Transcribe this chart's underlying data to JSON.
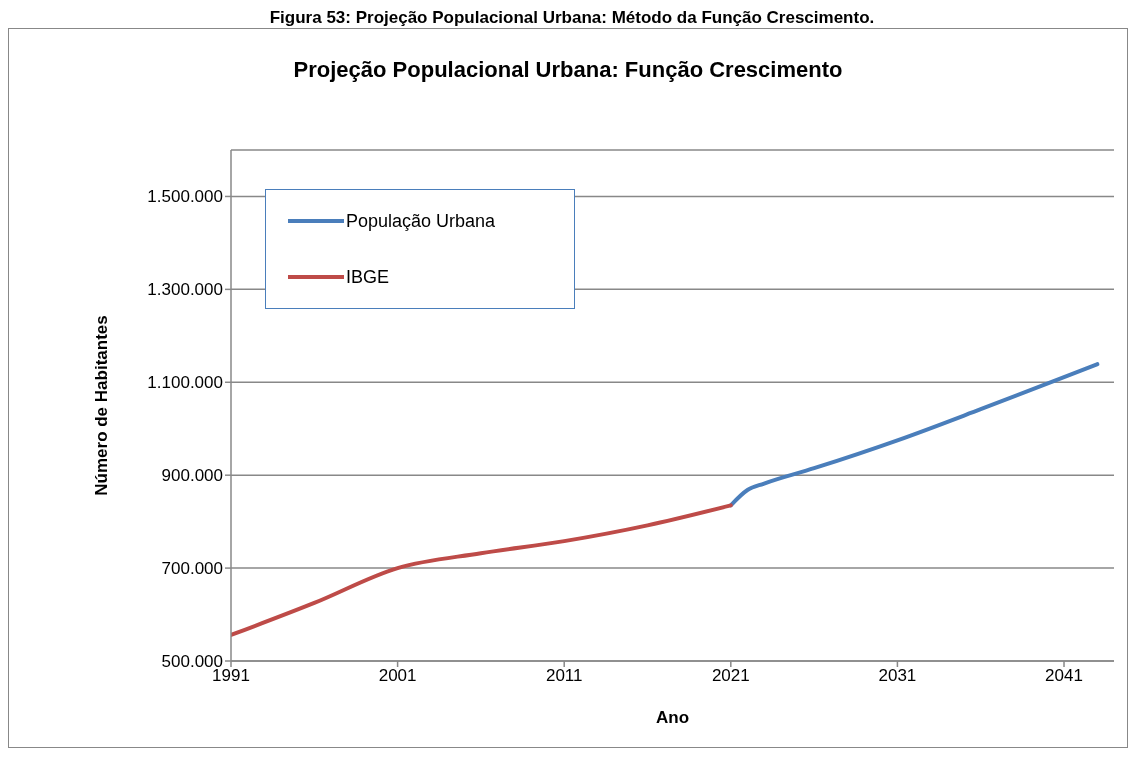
{
  "chart_data": {
    "type": "line",
    "title": "Projeção Populacional Urbana: Função Crescimento",
    "annotations": [
      "Figura 53: Projeção Populacional Urbana: Método da Função Crescimento."
    ],
    "xlabel": "Ano",
    "ylabel": "Número de Habitantes",
    "series": [
      {
        "name": "População Urbana",
        "color": "#4a7ebb",
        "x": [
          2021,
          2022,
          2023,
          2026,
          2031,
          2036,
          2041,
          2043
        ],
        "values": [
          835000,
          868000,
          882000,
          915000,
          975000,
          1042000,
          1111000,
          1139000
        ]
      },
      {
        "name": "IBGE",
        "color": "#be4b48",
        "x": [
          1991,
          1996,
          2001,
          2006,
          2011,
          2016,
          2021
        ],
        "values": [
          556000,
          625000,
          700000,
          732000,
          758000,
          792000,
          835000
        ]
      }
    ],
    "xlim": [
      1991,
      2044
    ],
    "xticks": [
      1991,
      2001,
      2011,
      2021,
      2031,
      2041
    ],
    "ylim": [
      500000,
      1600000
    ],
    "yticks": [
      {
        "value": 500000,
        "label": "500.000"
      },
      {
        "value": 700000,
        "label": "700.000"
      },
      {
        "value": 900000,
        "label": "900.000"
      },
      {
        "value": 1100000,
        "label": "1.100.000"
      },
      {
        "value": 1300000,
        "label": "1.300.000"
      },
      {
        "value": 1500000,
        "label": "1.500.000"
      }
    ],
    "grid": "y",
    "legend": "top left",
    "marker": "none",
    "line_style": "solid"
  }
}
